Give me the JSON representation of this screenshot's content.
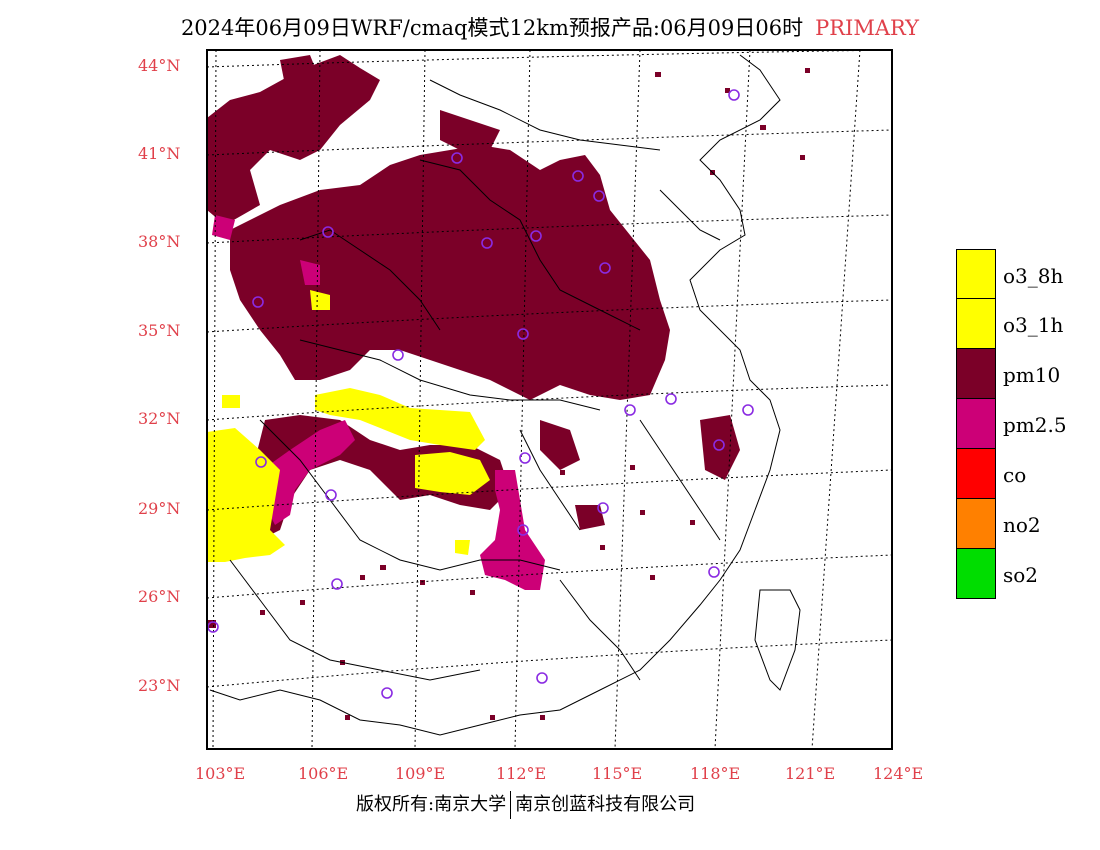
{
  "title": {
    "main": "2024年06月09日WRF/cmaq模式12km预报产品:06月09日06时",
    "tag": "PRIMARY"
  },
  "axes": {
    "lat_labels": [
      "44°N",
      "41°N",
      "38°N",
      "35°N",
      "32°N",
      "29°N",
      "26°N",
      "23°N"
    ],
    "lon_labels": [
      "103°E",
      "106°E",
      "109°E",
      "112°E",
      "115°E",
      "118°E",
      "121°E",
      "124°E"
    ]
  },
  "legend": [
    {
      "label": "o3_8h",
      "color": "#ffff00"
    },
    {
      "label": "o3_1h",
      "color": "#ffff00"
    },
    {
      "label": "pm10",
      "color": "#7b0028"
    },
    {
      "label": "pm2.5",
      "color": "#cc0077"
    },
    {
      "label": "co",
      "color": "#ff0000"
    },
    {
      "label": "no2",
      "color": "#ff8000"
    },
    {
      "label": "so2",
      "color": "#00dd00"
    }
  ],
  "footer": {
    "left": "版权所有:南京大学",
    "right": "南京创蓝科技有限公司"
  },
  "colors": {
    "pm10": "#7b0028",
    "pm25": "#cc0077",
    "o3": "#ffff00",
    "station": "#8a2be2",
    "tick_label": "#e0404a"
  }
}
